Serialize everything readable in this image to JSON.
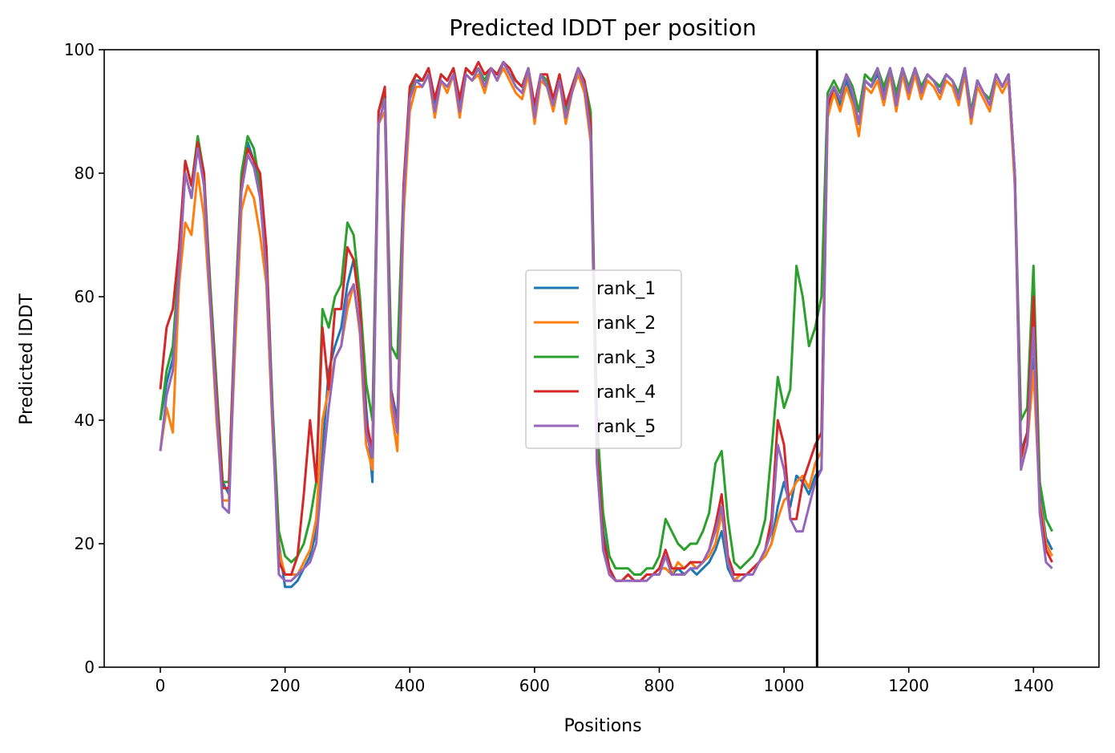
{
  "chart_data": {
    "type": "line",
    "title": "Predicted lDDT per position",
    "xlabel": "Positions",
    "ylabel": "Predicted lDDT",
    "xlim": [
      -90,
      1505
    ],
    "ylim": [
      0,
      100
    ],
    "x_ticks": [
      0,
      200,
      400,
      600,
      800,
      1000,
      1200,
      1400
    ],
    "y_ticks": [
      0,
      20,
      40,
      60,
      80,
      100
    ],
    "grid": false,
    "legend_position": "center",
    "vline": {
      "x": 1053,
      "color": "#000000"
    },
    "x": [
      0,
      10,
      20,
      30,
      40,
      50,
      60,
      70,
      80,
      90,
      100,
      110,
      120,
      130,
      140,
      150,
      160,
      170,
      180,
      190,
      200,
      210,
      220,
      230,
      240,
      250,
      260,
      270,
      280,
      290,
      300,
      310,
      320,
      330,
      340,
      350,
      360,
      370,
      380,
      390,
      400,
      410,
      420,
      430,
      440,
      450,
      460,
      470,
      480,
      490,
      500,
      510,
      520,
      530,
      540,
      550,
      560,
      570,
      580,
      590,
      600,
      610,
      620,
      630,
      640,
      650,
      660,
      670,
      680,
      690,
      700,
      710,
      720,
      730,
      740,
      750,
      760,
      770,
      780,
      790,
      800,
      810,
      820,
      830,
      840,
      850,
      860,
      870,
      880,
      890,
      900,
      910,
      920,
      930,
      940,
      950,
      960,
      970,
      980,
      990,
      1000,
      1010,
      1020,
      1030,
      1040,
      1050,
      1060,
      1070,
      1080,
      1090,
      1100,
      1110,
      1120,
      1130,
      1140,
      1150,
      1160,
      1170,
      1180,
      1190,
      1200,
      1210,
      1220,
      1230,
      1240,
      1250,
      1260,
      1270,
      1280,
      1290,
      1300,
      1310,
      1320,
      1330,
      1340,
      1350,
      1360,
      1370,
      1380,
      1390,
      1400,
      1410,
      1420,
      1430
    ],
    "series": [
      {
        "name": "rank_1",
        "color": "#1f77b4",
        "values": [
          40,
          46,
          50,
          65,
          80,
          76,
          85,
          78,
          60,
          42,
          30,
          28,
          55,
          78,
          85,
          82,
          76,
          65,
          40,
          20,
          13,
          13,
          14,
          16,
          18,
          22,
          35,
          48,
          52,
          55,
          62,
          66,
          58,
          42,
          30,
          88,
          92,
          45,
          40,
          75,
          92,
          95,
          95,
          97,
          91,
          96,
          95,
          97,
          91,
          97,
          96,
          97,
          95,
          97,
          96,
          98,
          96,
          95,
          94,
          97,
          90,
          96,
          95,
          92,
          96,
          90,
          94,
          97,
          95,
          88,
          35,
          22,
          16,
          14,
          14,
          15,
          14,
          14,
          15,
          15,
          16,
          16,
          15,
          16,
          15,
          16,
          15,
          16,
          17,
          19,
          22,
          16,
          14,
          15,
          15,
          16,
          17,
          18,
          20,
          26,
          30,
          26,
          31,
          30,
          28,
          31,
          32,
          90,
          94,
          91,
          95,
          92,
          88,
          95,
          94,
          96,
          93,
          97,
          92,
          97,
          93,
          97,
          94,
          96,
          95,
          94,
          96,
          95,
          93,
          97,
          90,
          95,
          93,
          92,
          96,
          94,
          96,
          80,
          35,
          38,
          50,
          28,
          21,
          19
        ]
      },
      {
        "name": "rank_2",
        "color": "#ff7f0e",
        "values": [
          35,
          42,
          38,
          62,
          72,
          70,
          80,
          73,
          58,
          40,
          27,
          27,
          52,
          74,
          78,
          76,
          70,
          62,
          38,
          19,
          15,
          15,
          15,
          17,
          19,
          24,
          40,
          45,
          50,
          52,
          58,
          62,
          54,
          36,
          32,
          88,
          90,
          42,
          35,
          73,
          90,
          94,
          94,
          96,
          89,
          95,
          93,
          96,
          89,
          96,
          95,
          96,
          93,
          97,
          95,
          97,
          95,
          93,
          92,
          96,
          88,
          95,
          94,
          90,
          95,
          88,
          93,
          96,
          93,
          85,
          33,
          20,
          15,
          14,
          14,
          15,
          14,
          14,
          15,
          15,
          16,
          16,
          15,
          17,
          16,
          17,
          16,
          17,
          18,
          20,
          25,
          17,
          14,
          15,
          15,
          16,
          17,
          18,
          20,
          24,
          27,
          28,
          30,
          31,
          29,
          33,
          35,
          89,
          93,
          90,
          94,
          91,
          86,
          94,
          93,
          95,
          91,
          96,
          90,
          96,
          92,
          96,
          92,
          95,
          94,
          92,
          95,
          94,
          91,
          96,
          88,
          94,
          92,
          90,
          95,
          93,
          95,
          78,
          33,
          36,
          48,
          27,
          20,
          18
        ]
      },
      {
        "name": "rank_3",
        "color": "#2ca02c",
        "values": [
          40,
          48,
          52,
          66,
          82,
          78,
          86,
          80,
          62,
          46,
          30,
          30,
          58,
          80,
          86,
          84,
          78,
          68,
          42,
          22,
          18,
          17,
          18,
          20,
          24,
          30,
          58,
          55,
          60,
          62,
          72,
          70,
          60,
          46,
          40,
          90,
          93,
          52,
          50,
          78,
          93,
          96,
          95,
          97,
          92,
          96,
          95,
          97,
          92,
          97,
          96,
          97,
          95,
          97,
          96,
          98,
          96,
          95,
          94,
          97,
          90,
          96,
          95,
          92,
          96,
          90,
          94,
          97,
          95,
          90,
          40,
          25,
          18,
          16,
          16,
          16,
          15,
          15,
          16,
          16,
          18,
          24,
          22,
          20,
          19,
          20,
          20,
          22,
          25,
          33,
          35,
          24,
          17,
          16,
          17,
          18,
          20,
          24,
          35,
          47,
          42,
          45,
          65,
          60,
          52,
          55,
          60,
          93,
          95,
          93,
          96,
          94,
          90,
          96,
          95,
          97,
          94,
          97,
          93,
          97,
          94,
          97,
          94,
          96,
          95,
          94,
          96,
          95,
          93,
          97,
          90,
          95,
          93,
          92,
          96,
          94,
          96,
          80,
          40,
          42,
          65,
          30,
          24,
          22
        ]
      },
      {
        "name": "rank_4",
        "color": "#d62728",
        "values": [
          45,
          55,
          58,
          68,
          82,
          78,
          85,
          80,
          60,
          44,
          29,
          29,
          57,
          78,
          84,
          82,
          80,
          68,
          40,
          17,
          15,
          15,
          18,
          28,
          40,
          30,
          55,
          45,
          58,
          58,
          68,
          66,
          58,
          40,
          35,
          90,
          94,
          45,
          38,
          78,
          94,
          96,
          95,
          97,
          92,
          96,
          95,
          97,
          92,
          97,
          96,
          98,
          96,
          97,
          96,
          98,
          97,
          95,
          94,
          97,
          91,
          96,
          96,
          92,
          96,
          91,
          94,
          97,
          95,
          88,
          35,
          21,
          16,
          14,
          14,
          15,
          14,
          14,
          15,
          15,
          16,
          19,
          16,
          16,
          16,
          17,
          17,
          17,
          19,
          23,
          28,
          18,
          15,
          15,
          15,
          16,
          17,
          19,
          24,
          40,
          36,
          24,
          24,
          30,
          33,
          36,
          38,
          91,
          94,
          92,
          96,
          93,
          88,
          95,
          94,
          97,
          92,
          97,
          91,
          97,
          93,
          97,
          93,
          96,
          95,
          93,
          96,
          95,
          92,
          97,
          89,
          95,
          93,
          91,
          96,
          94,
          96,
          80,
          34,
          38,
          60,
          26,
          19,
          17
        ]
      },
      {
        "name": "rank_5",
        "color": "#9467bd",
        "values": [
          35,
          44,
          48,
          64,
          80,
          76,
          84,
          78,
          59,
          42,
          26,
          25,
          56,
          77,
          83,
          81,
          76,
          64,
          40,
          15,
          14,
          14,
          15,
          16,
          17,
          20,
          32,
          42,
          50,
          52,
          60,
          62,
          55,
          38,
          34,
          88,
          92,
          44,
          38,
          76,
          92,
          95,
          94,
          96,
          90,
          95,
          94,
          96,
          90,
          96,
          95,
          97,
          94,
          97,
          95,
          98,
          96,
          94,
          93,
          97,
          89,
          96,
          94,
          91,
          95,
          89,
          93,
          97,
          94,
          86,
          33,
          19,
          15,
          14,
          14,
          14,
          14,
          14,
          14,
          15,
          15,
          18,
          15,
          15,
          15,
          16,
          16,
          17,
          19,
          22,
          26,
          17,
          14,
          14,
          15,
          15,
          17,
          19,
          22,
          36,
          32,
          24,
          22,
          22,
          26,
          30,
          32,
          92,
          94,
          92,
          96,
          93,
          88,
          95,
          94,
          97,
          92,
          97,
          91,
          97,
          93,
          97,
          93,
          96,
          95,
          93,
          96,
          95,
          92,
          97,
          89,
          95,
          93,
          91,
          96,
          94,
          96,
          80,
          32,
          36,
          55,
          25,
          17,
          16
        ]
      }
    ]
  }
}
